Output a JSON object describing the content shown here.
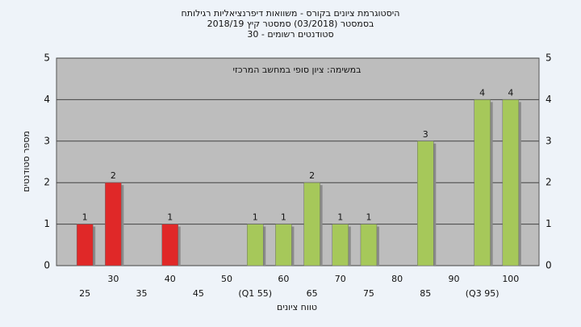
{
  "chart_data": {
    "type": "bar",
    "title": "היסטוגרמת ציונים בקורס - משוואות דיפרנציאליות רגילותח",
    "subtitle": "בסמסטר (03/2018) סמסטר קיץ 2018/19",
    "subtitle2": "סטודנטים רשומים - 30",
    "annotation": "במשימה: ציון סופי במחשב המרכזי",
    "x_label": "טווח ציונים",
    "y_label": "מספר סטודנטים",
    "categories": [
      "25",
      "30",
      "35",
      "40",
      "45",
      "50",
      "(Q1 55)",
      "60",
      "65",
      "70",
      "75",
      "80",
      "85",
      "90",
      "(Q3 95)",
      "100"
    ],
    "values": [
      1,
      2,
      0,
      1,
      0,
      0,
      1,
      1,
      2,
      1,
      1,
      0,
      3,
      0,
      4,
      4
    ],
    "colors": [
      "#e02828",
      "#e02828",
      "#e02828",
      "#e02828",
      "#e02828",
      "#e02828",
      "#a6c85a",
      "#a6c85a",
      "#a6c85a",
      "#a6c85a",
      "#a6c85a",
      "#a6c85a",
      "#a6c85a",
      "#a6c85a",
      "#a6c85a",
      "#a6c85a"
    ],
    "ylim": [
      0,
      5
    ],
    "yticks": [
      0,
      1,
      2,
      3,
      4,
      5
    ],
    "grid": true
  }
}
